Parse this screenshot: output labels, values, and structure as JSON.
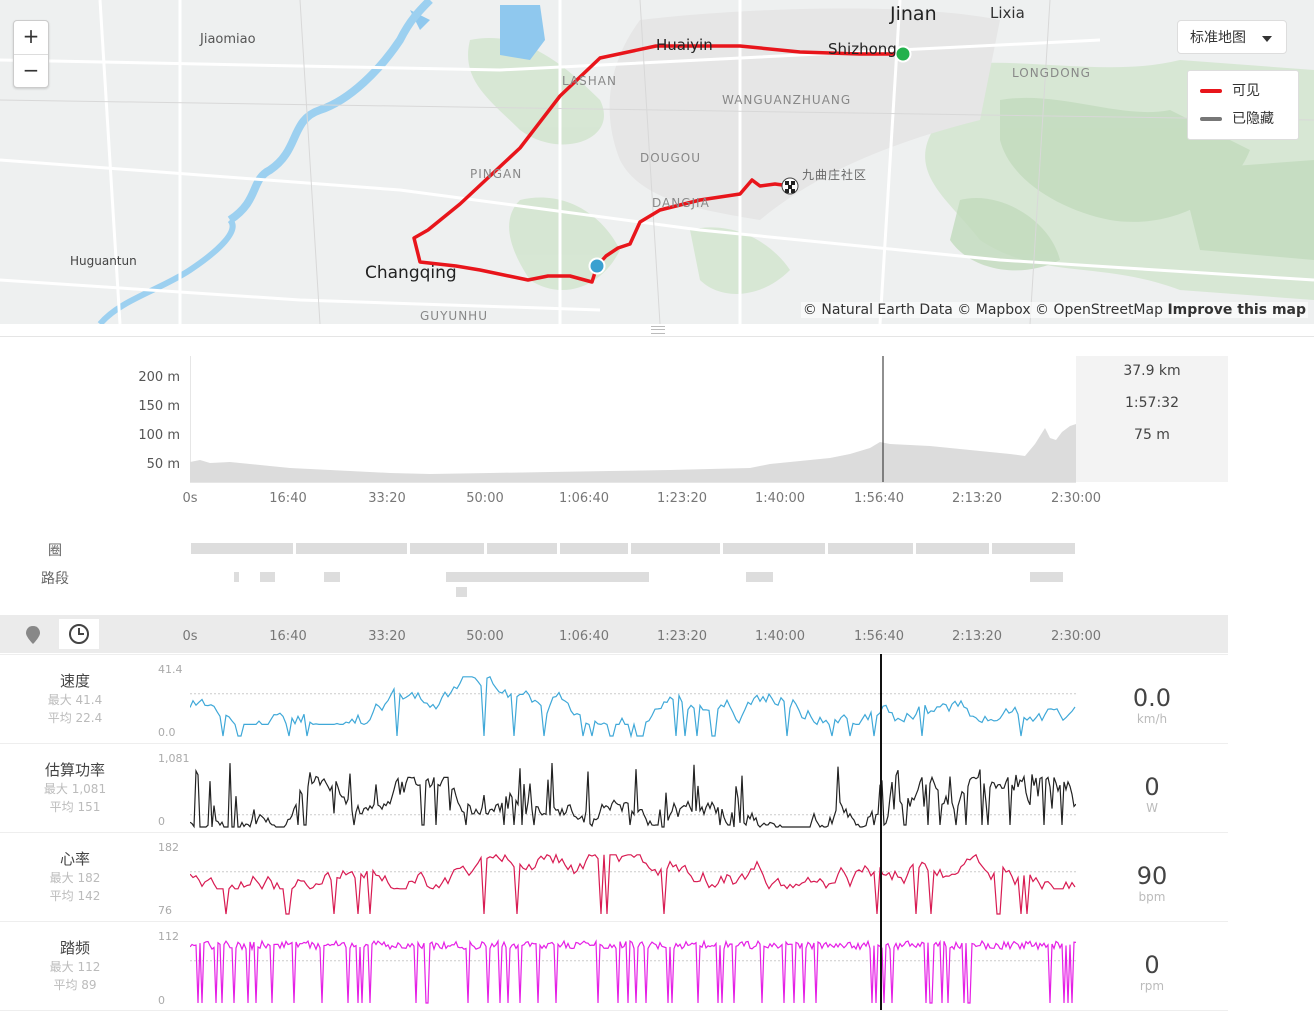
{
  "map": {
    "zoom_in": "+",
    "zoom_out": "−",
    "map_type": "标准地图",
    "legend": [
      {
        "label": "可见",
        "color": "#e8151b"
      },
      {
        "label": "已隐藏",
        "color": "#777777"
      }
    ],
    "attribution": "© Natural Earth Data © Mapbox © OpenStreetMap",
    "improve": "Improve this map",
    "places": [
      "Jinan",
      "Lixia",
      "Jiaomiao",
      "Huaiyin",
      "Shizhong",
      "LONGDONG",
      "LASHAN",
      "WANGUANZHUANG",
      "DOUGOU",
      "九曲庄社区",
      "PINGAN",
      "DANGJIA",
      "Huguantun",
      "Changqing",
      "GUYUNHU"
    ]
  },
  "elevation": {
    "y_ticks": [
      "200 m",
      "150 m",
      "100 m",
      "50 m"
    ],
    "x_ticks": [
      "0s",
      "16:40",
      "33:20",
      "50:00",
      "1:06:40",
      "1:23:20",
      "1:40:00",
      "1:56:40",
      "2:13:20",
      "2:30:00"
    ],
    "distance": "37.9 km",
    "time": "1:57:32",
    "altitude": "75 m"
  },
  "rows": {
    "laps": "圈",
    "segments": "路段"
  },
  "axis": {
    "x_ticks": [
      "0s",
      "16:40",
      "33:20",
      "50:00",
      "1:06:40",
      "1:23:20",
      "1:40:00",
      "1:56:40",
      "2:13:20",
      "2:30:00"
    ]
  },
  "metrics": [
    {
      "name": "速度",
      "max": "最大 41.4",
      "avg": "平均 22.4",
      "top": "41.4",
      "bottom": "0.0",
      "value": "0.0",
      "unit": "km/h",
      "color": "#3fa8d8"
    },
    {
      "name": "估算功率",
      "max": "最大 1,081",
      "avg": "平均 151",
      "top": "1,081",
      "bottom": "0",
      "value": "0",
      "unit": "W",
      "color": "#222222"
    },
    {
      "name": "心率",
      "max": "最大 182",
      "avg": "平均 142",
      "top": "182",
      "bottom": "76",
      "value": "90",
      "unit": "bpm",
      "color": "#d81b52"
    },
    {
      "name": "踏频",
      "max": "最大 112",
      "avg": "平均 89",
      "top": "112",
      "bottom": "0",
      "value": "0",
      "unit": "rpm",
      "color": "#e51ee5"
    }
  ]
}
